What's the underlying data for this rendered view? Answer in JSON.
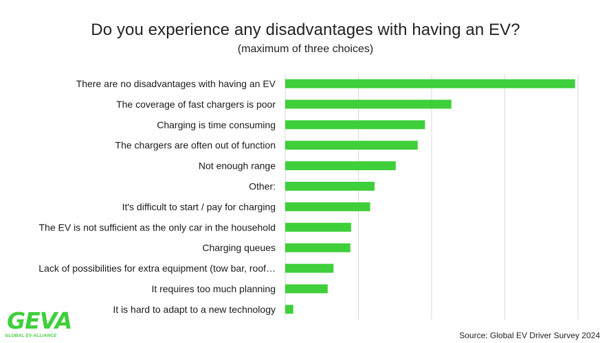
{
  "chart_data": {
    "type": "bar",
    "orientation": "horizontal",
    "title": "Do you experience any disadvantages with having an EV?",
    "subtitle": "(maximum of three choices)",
    "categories": [
      "There are no disadvantages with having an EV",
      "The coverage of fast chargers is poor",
      "Charging is time consuming",
      "The chargers are often out of function",
      "Not enough range",
      "Other:",
      "It's difficult to start / pay for charging",
      "The EV is not sufficient as the only car in the household",
      "Charging queues",
      "Lack of possibilities for extra equipment (tow bar, roof…",
      "It requires too much planning",
      "It is hard to adapt to a new technology"
    ],
    "values": [
      39.6,
      22.7,
      19.1,
      18.1,
      15.1,
      12.2,
      11.6,
      9.0,
      8.9,
      6.6,
      5.8,
      1.1
    ],
    "xlim": [
      0,
      40
    ],
    "grid": true,
    "bar_color": "#3fcf3a",
    "grid_color": "#d9d9d9"
  },
  "source": "Source: Global EV Driver Survey 2024",
  "logo": {
    "text": "GEVA",
    "subtext": "GLOBAL EV ALLIANCE"
  }
}
